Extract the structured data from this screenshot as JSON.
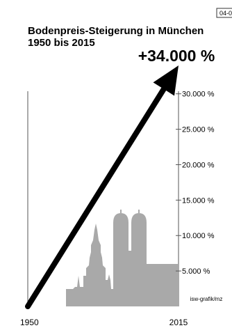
{
  "page_code": "04-0",
  "chart_data": {
    "type": "line",
    "title": "Bodenpreis-Steigerung in München",
    "subtitle": "1950 bis 2015",
    "headline_label": "+34.000 %",
    "x": [
      "1950",
      "2015"
    ],
    "series": [
      {
        "values": [
          0,
          34000
        ]
      }
    ],
    "ylim": [
      0,
      34000
    ],
    "yticks": [
      "5.000 %",
      "10.000 %",
      "15.000 %",
      "20.000 %",
      "25.000 %",
      "30.000 %"
    ],
    "ytick_values": [
      5000,
      10000,
      15000,
      20000,
      25000,
      30000
    ],
    "xtick_labels": [
      "1950",
      "2015"
    ],
    "grid": false,
    "credit": "isw-grafik/mz",
    "colors": {
      "arrow": "#000000",
      "skyline": "#a9a9a9",
      "axis": "#555555"
    }
  }
}
